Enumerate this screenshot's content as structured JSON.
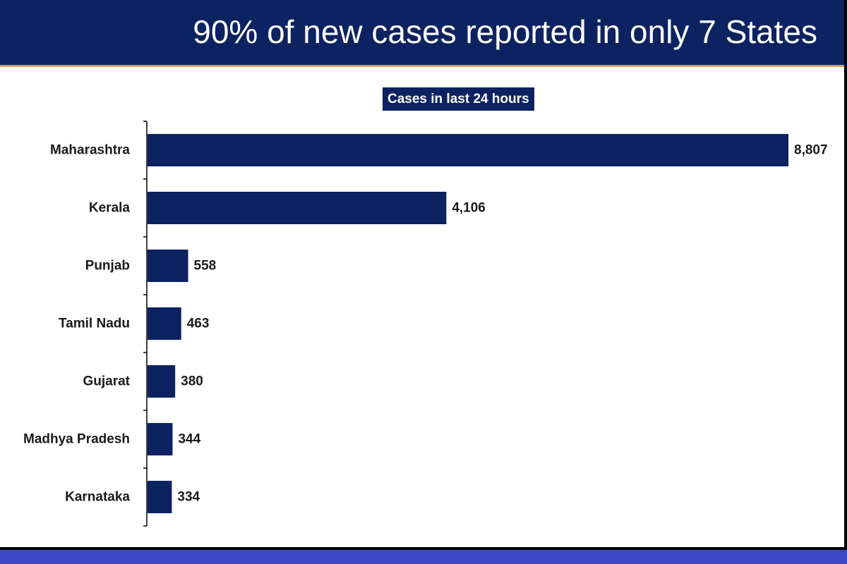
{
  "header": {
    "title": "90% of new cases reported in only 7 States"
  },
  "colors": {
    "header_bg": "#0d2260",
    "bar": "#0d2260",
    "bottom_bar": "#3b47c6"
  },
  "chart_data": {
    "type": "bar",
    "orientation": "horizontal",
    "title": "Cases in last 24 hours",
    "xlabel": "",
    "ylabel": "",
    "categories": [
      "Maharashtra",
      "Kerala",
      "Punjab",
      "Tamil Nadu",
      "Gujarat",
      "Madhya Pradesh",
      "Karnataka"
    ],
    "values": [
      8807,
      4106,
      558,
      463,
      380,
      344,
      334
    ],
    "data_labels": [
      "8,807",
      "4,106",
      "558",
      "463",
      "380",
      "344",
      "334"
    ],
    "xlim": [
      0,
      8807
    ],
    "grid": false,
    "legend": "none"
  }
}
